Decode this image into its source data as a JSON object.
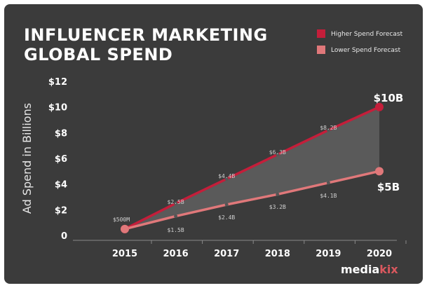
{
  "chart_data": {
    "type": "line",
    "title_lines": [
      "INFLUENCER MARKETING",
      "GLOBAL SPEND"
    ],
    "ylabel": "Ad Spend in Billions",
    "xlabel": "",
    "categories": [
      "2015",
      "2016",
      "2017",
      "2018",
      "2019",
      "2020"
    ],
    "y_ticks": [
      0,
      2,
      4,
      6,
      8,
      10,
      12
    ],
    "y_tick_labels": [
      "0",
      "$2",
      "$4",
      "$6",
      "$8",
      "$10",
      "$12"
    ],
    "ylim": [
      0,
      12
    ],
    "grid": false,
    "legend_position": "top-right",
    "area_between_series": true,
    "series": [
      {
        "name": "Higher Spend Forecast",
        "color": "#c41e3a",
        "values": [
          0.5,
          2.5,
          4.4,
          6.3,
          8.2,
          10
        ],
        "labels": [
          "$500M",
          "$2.5B",
          "$4.4B",
          "$6.3B",
          "$8.2B",
          "$10B"
        ]
      },
      {
        "name": "Lower Spend Forecast",
        "color": "#e0787a",
        "values": [
          0.5,
          1.5,
          2.4,
          3.2,
          4.1,
          5
        ],
        "labels": [
          "",
          "$1.5B",
          "$2.4B",
          "$3.2B",
          "$4.1B",
          "$5B"
        ]
      }
    ],
    "area_color": "#5a5a5a",
    "brand": {
      "part1": "media",
      "part2": "kix"
    }
  }
}
